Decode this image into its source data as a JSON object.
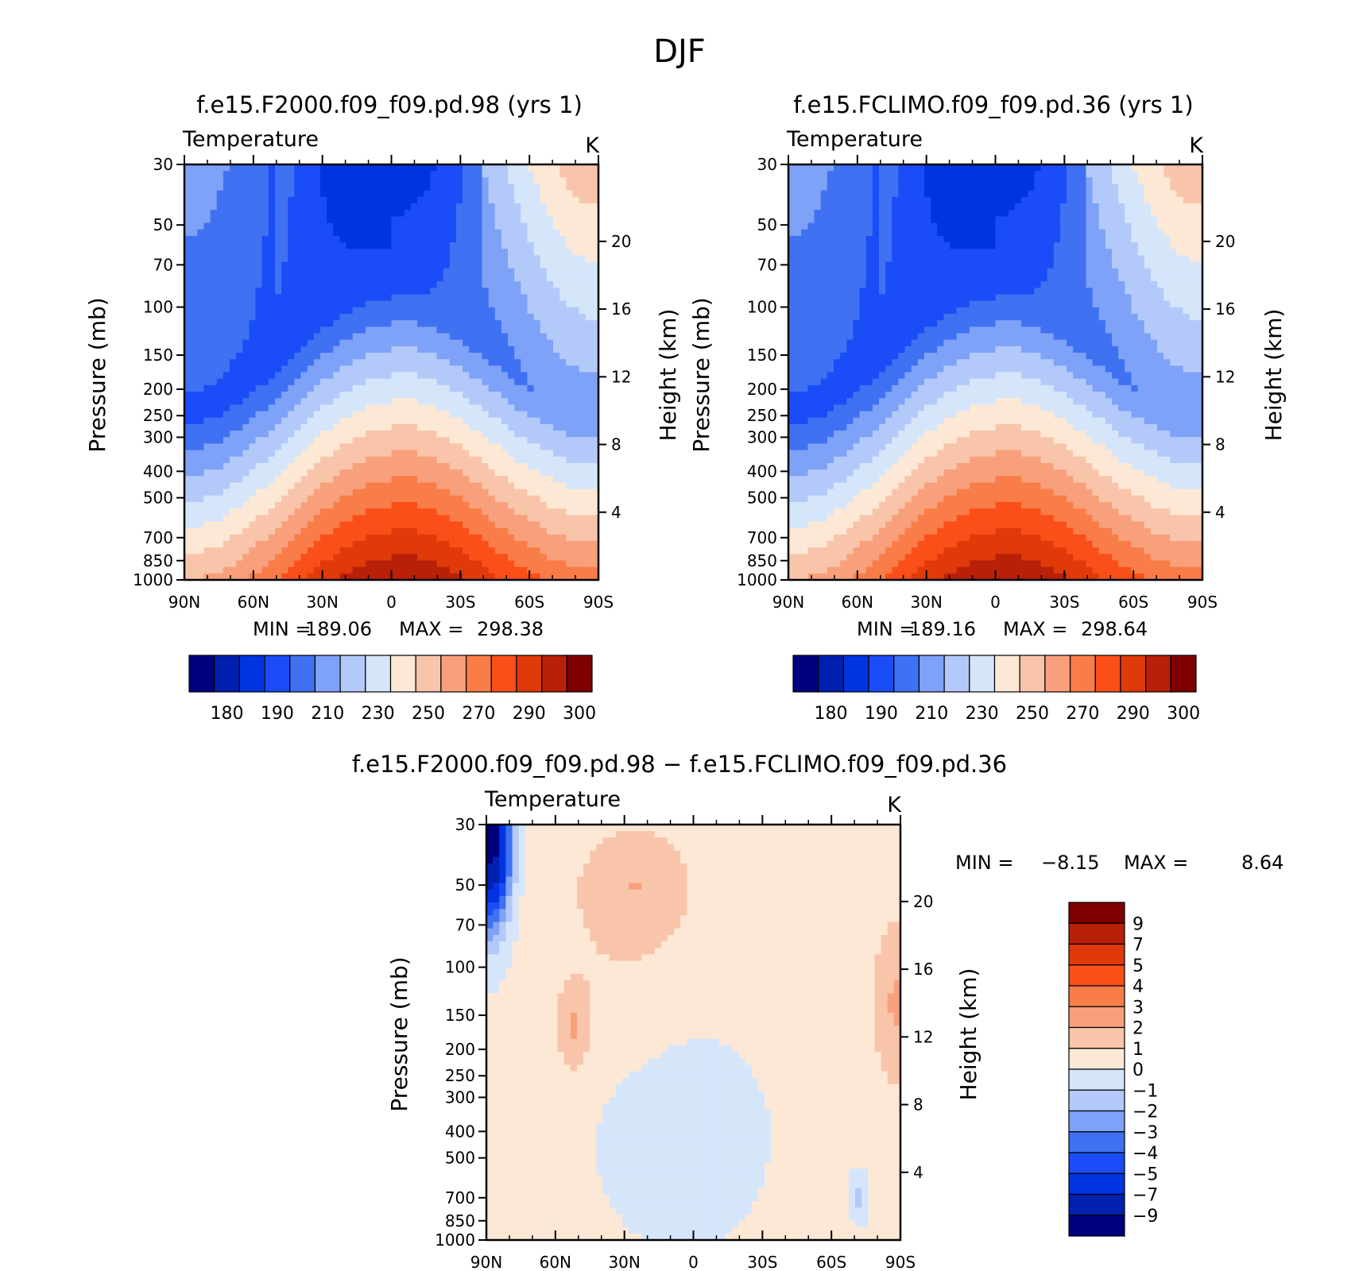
{
  "page_title": "DJF",
  "colors": {
    "scale": [
      "#00007f",
      "#0020b0",
      "#0034e0",
      "#1a4cf7",
      "#3f71f2",
      "#7ea2f7",
      "#b3c9fa",
      "#d5e6fb",
      "#fde8d6",
      "#f9c5aa",
      "#f8a07c",
      "#f97d48",
      "#fb4f1a",
      "#e03a0a",
      "#b82008",
      "#7f0000"
    ]
  },
  "chart_data": [
    {
      "type": "contour",
      "title": "f.e15.F2000.f09_f09.pd.98 (yrs  1)",
      "left_label": "Temperature",
      "units": "K",
      "xlabel": "",
      "ylabel": "Pressure (mb)",
      "y2label": "Height (km)",
      "x_ticks": [
        "90N",
        "60N",
        "30N",
        "0",
        "30S",
        "60S",
        "90S"
      ],
      "x_range": [
        90,
        -90
      ],
      "y_ticks": [
        30,
        50,
        70,
        100,
        150,
        200,
        250,
        300,
        400,
        500,
        700,
        850,
        1000
      ],
      "y_range": [
        30,
        1000
      ],
      "y2_ticks": [
        20,
        16,
        12,
        8,
        4
      ],
      "min_label": "MIN =",
      "min_value": "189.06",
      "max_label": "MAX =",
      "max_value": "298.38",
      "colorbar_labels": [
        "180",
        "190",
        "210",
        "230",
        "250",
        "270",
        "290",
        "300"
      ],
      "field": {
        "equator_tropopause": 190,
        "pole_tropopause": 212,
        "surface_equator": 298,
        "surface_pole_n": 250,
        "surface_pole_s": 262
      }
    },
    {
      "type": "contour",
      "title": "f.e15.FCLIMO.f09_f09.pd.36 (yrs  1)",
      "left_label": "Temperature",
      "units": "K",
      "xlabel": "",
      "ylabel": "Pressure (mb)",
      "y2label": "Height (km)",
      "x_ticks": [
        "90N",
        "60N",
        "30N",
        "0",
        "30S",
        "60S",
        "90S"
      ],
      "x_range": [
        90,
        -90
      ],
      "y_ticks": [
        30,
        50,
        70,
        100,
        150,
        200,
        250,
        300,
        400,
        500,
        700,
        850,
        1000
      ],
      "y_range": [
        30,
        1000
      ],
      "y2_ticks": [
        20,
        16,
        12,
        8,
        4
      ],
      "min_label": "MIN =",
      "min_value": "189.16",
      "max_label": "MAX =",
      "max_value": "298.64",
      "colorbar_labels": [
        "180",
        "190",
        "210",
        "230",
        "250",
        "270",
        "290",
        "300"
      ],
      "field": {
        "equator_tropopause": 190,
        "pole_tropopause": 212,
        "surface_equator": 298,
        "surface_pole_n": 250,
        "surface_pole_s": 262
      }
    },
    {
      "type": "contour",
      "title": "f.e15.F2000.f09_f09.pd.98 − f.e15.FCLIMO.f09_f09.pd.36",
      "left_label": "Temperature",
      "units": "K",
      "xlabel": "",
      "ylabel": "Pressure (mb)",
      "y2label": "Height (km)",
      "x_ticks": [
        "90N",
        "60N",
        "30N",
        "0",
        "30S",
        "60S",
        "90S"
      ],
      "x_range": [
        90,
        -90
      ],
      "y_ticks": [
        30,
        50,
        70,
        100,
        150,
        200,
        250,
        300,
        400,
        500,
        700,
        850,
        1000
      ],
      "y_range": [
        30,
        1000
      ],
      "y2_ticks": [
        20,
        16,
        12,
        8,
        4
      ],
      "min_label": "MIN =",
      "min_value": "−8.15",
      "max_label": "MAX =",
      "max_value": "8.64",
      "colorbar_labels": [
        "9",
        "7",
        "5",
        "4",
        "3",
        "2",
        "1",
        "0",
        "−1",
        "−2",
        "−3",
        "−4",
        "−5",
        "−7",
        "−9"
      ],
      "levels": [
        -9,
        -7,
        -5,
        -4,
        -3,
        -2,
        -1,
        0,
        1,
        2,
        3,
        4,
        5,
        7,
        9
      ]
    }
  ]
}
